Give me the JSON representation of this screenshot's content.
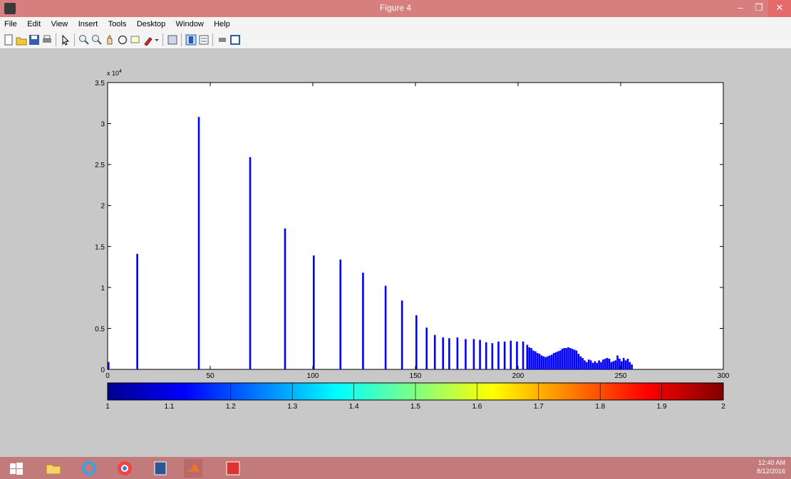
{
  "window": {
    "title": "Figure 4",
    "min_glyph": "–",
    "max_glyph": "❐",
    "close_glyph": "✕"
  },
  "menu": [
    "File",
    "Edit",
    "View",
    "Insert",
    "Tools",
    "Desktop",
    "Window",
    "Help"
  ],
  "toolbar_icons": [
    "new-figure-icon",
    "open-file-icon",
    "save-icon",
    "print-icon",
    "edit-plot-icon",
    "zoom-in-icon",
    "zoom-out-icon",
    "pan-icon",
    "rotate-3d-icon",
    "data-cursor-icon",
    "brush-icon",
    "brush-dropdown-icon",
    "link-plot-icon",
    "insert-colorbar-icon",
    "insert-legend-icon",
    "hide-plot-tools-icon",
    "show-plot-tools-icon"
  ],
  "chart_data": {
    "type": "bar",
    "title": "",
    "xlabel": "",
    "ylabel": "",
    "y_exponent_label": "x 10",
    "y_exponent": "4",
    "xlim": [
      0,
      300
    ],
    "ylim": [
      0,
      35000
    ],
    "xticks": [
      0,
      50,
      100,
      150,
      200,
      250,
      300
    ],
    "yticks": [
      0,
      5000,
      10000,
      15000,
      20000,
      25000,
      30000,
      35000
    ],
    "ytick_labels": [
      "0",
      "0.5",
      "1",
      "1.5",
      "2",
      "2.5",
      "3",
      "3.5"
    ],
    "series_color": "#0000ff",
    "x": [
      0,
      14,
      44,
      69,
      86,
      100,
      113,
      124,
      135,
      143,
      150,
      155,
      159,
      163,
      166,
      170,
      174,
      178,
      181,
      184,
      187,
      190,
      193,
      196,
      199,
      202,
      204,
      205,
      206,
      207,
      208,
      209,
      210,
      211,
      212,
      213,
      214,
      215,
      216,
      217,
      218,
      219,
      220,
      221,
      222,
      223,
      224,
      225,
      226,
      227,
      228,
      229,
      230,
      231,
      232,
      233,
      234,
      235,
      236,
      237,
      238,
      239,
      240,
      241,
      242,
      243,
      244,
      245,
      246,
      247,
      248,
      249,
      250,
      251,
      252,
      253,
      254,
      255
    ],
    "values": [
      900,
      14100,
      30800,
      25900,
      17200,
      13900,
      13400,
      11800,
      10200,
      8400,
      6600,
      5100,
      4200,
      3900,
      3800,
      3900,
      3700,
      3700,
      3600,
      3300,
      3200,
      3400,
      3400,
      3500,
      3400,
      3400,
      3000,
      2700,
      2600,
      2300,
      2200,
      2000,
      1900,
      1700,
      1600,
      1500,
      1600,
      1700,
      1800,
      2000,
      2100,
      2200,
      2300,
      2500,
      2600,
      2600,
      2700,
      2600,
      2500,
      2400,
      2300,
      1900,
      1600,
      1400,
      1100,
      900,
      1200,
      1100,
      800,
      1000,
      800,
      1100,
      900,
      1200,
      1300,
      1400,
      1300,
      900,
      1000,
      1100,
      1700,
      1300,
      1000,
      1400,
      1100,
      1300,
      900,
      600
    ]
  },
  "colorbar": {
    "ticks": [
      1,
      1.1,
      1.2,
      1.3,
      1.4,
      1.5,
      1.6,
      1.7,
      1.8,
      1.9,
      2
    ],
    "tick_labels": [
      "1",
      "1.1",
      "1.2",
      "1.3",
      "1.4",
      "1.5",
      "1.6",
      "1.7",
      "1.8",
      "1.9",
      "2"
    ],
    "colormap": "jet",
    "colors": [
      "#00008f",
      "#0000ff",
      "#0080ff",
      "#00ffff",
      "#80ff80",
      "#ffff00",
      "#ff8000",
      "#ff0000",
      "#800000"
    ]
  },
  "taskbar": {
    "icons": [
      "windows-start-icon",
      "file-explorer-icon",
      "internet-explorer-icon",
      "chrome-icon",
      "document-app-icon",
      "matlab-icon",
      "image-app-icon"
    ],
    "time": "12:40 AM",
    "date": "8/12/2016"
  }
}
